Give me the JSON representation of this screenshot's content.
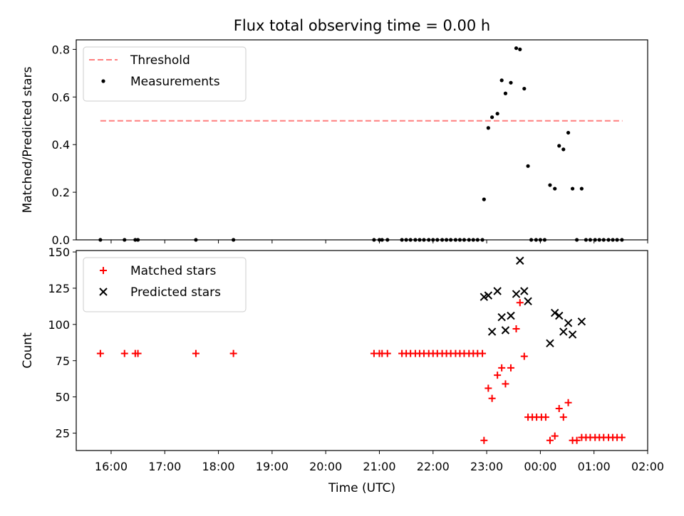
{
  "title": "Flux total observing time = 0.00 h",
  "chart_data": [
    {
      "type": "scatter",
      "panel": "top",
      "ylabel": "Matched/Predicted stars",
      "xlabel": "",
      "x_unit": "hours since 00:00 UTC of first night",
      "xlim": [
        15.35,
        26.0
      ],
      "ylim": [
        0.0,
        0.84
      ],
      "yticks": [
        0.0,
        0.2,
        0.4,
        0.6,
        0.8
      ],
      "ytick_labels": [
        "0.0",
        "0.2",
        "0.4",
        "0.6",
        "0.8"
      ],
      "legend_position": "upper-left",
      "colors": {
        "threshold": "#ff7f7f",
        "measurements": "#000000"
      },
      "threshold": {
        "name": "Threshold",
        "y": 0.5,
        "x_start": 15.8,
        "x_end": 25.53
      },
      "series": [
        {
          "name": "Measurements",
          "points": [
            [
              15.8,
              0
            ],
            [
              16.25,
              0
            ],
            [
              16.45,
              0
            ],
            [
              16.5,
              0
            ],
            [
              17.58,
              0
            ],
            [
              18.28,
              0
            ],
            [
              20.9,
              0
            ],
            [
              21.0,
              0
            ],
            [
              21.05,
              0
            ],
            [
              21.15,
              0
            ],
            [
              21.42,
              0
            ],
            [
              21.5,
              0
            ],
            [
              21.58,
              0
            ],
            [
              21.67,
              0
            ],
            [
              21.75,
              0
            ],
            [
              21.83,
              0
            ],
            [
              21.92,
              0
            ],
            [
              22.0,
              0
            ],
            [
              22.08,
              0
            ],
            [
              22.17,
              0
            ],
            [
              22.25,
              0
            ],
            [
              22.33,
              0
            ],
            [
              22.42,
              0
            ],
            [
              22.5,
              0
            ],
            [
              22.58,
              0
            ],
            [
              22.67,
              0
            ],
            [
              22.75,
              0
            ],
            [
              22.83,
              0
            ],
            [
              22.92,
              0
            ],
            [
              22.95,
              0.17
            ],
            [
              23.03,
              0.47
            ],
            [
              23.1,
              0.515
            ],
            [
              23.2,
              0.53
            ],
            [
              23.28,
              0.67
            ],
            [
              23.35,
              0.615
            ],
            [
              23.45,
              0.66
            ],
            [
              23.55,
              0.805
            ],
            [
              23.62,
              0.8
            ],
            [
              23.7,
              0.635
            ],
            [
              23.77,
              0.31
            ],
            [
              23.83,
              0
            ],
            [
              23.92,
              0
            ],
            [
              24.0,
              0
            ],
            [
              24.08,
              0
            ],
            [
              24.18,
              0.23
            ],
            [
              24.27,
              0.215
            ],
            [
              24.35,
              0.395
            ],
            [
              24.43,
              0.38
            ],
            [
              24.52,
              0.45
            ],
            [
              24.6,
              0.215
            ],
            [
              24.68,
              0
            ],
            [
              24.77,
              0.215
            ],
            [
              24.85,
              0
            ],
            [
              24.93,
              0
            ],
            [
              25.02,
              0
            ],
            [
              25.1,
              0
            ],
            [
              25.18,
              0
            ],
            [
              25.27,
              0
            ],
            [
              25.35,
              0
            ],
            [
              25.43,
              0
            ],
            [
              25.52,
              0
            ]
          ]
        }
      ]
    },
    {
      "type": "scatter",
      "panel": "bottom",
      "ylabel": "Count",
      "xlabel": "Time (UTC)",
      "x_unit": "hours since 00:00 UTC of first night",
      "xlim": [
        15.35,
        26.0
      ],
      "ylim": [
        13,
        151
      ],
      "yticks": [
        25,
        50,
        75,
        100,
        125,
        150
      ],
      "ytick_labels": [
        "25",
        "50",
        "75",
        "100",
        "125",
        "150"
      ],
      "xticks": [
        16,
        17,
        18,
        19,
        20,
        21,
        22,
        23,
        24,
        25,
        26
      ],
      "xtick_labels": [
        "16:00",
        "17:00",
        "18:00",
        "19:00",
        "20:00",
        "21:00",
        "22:00",
        "23:00",
        "00:00",
        "01:00",
        "02:00"
      ],
      "legend_position": "upper-left",
      "colors": {
        "matched": "#ff0000",
        "predicted": "#000000"
      },
      "series": [
        {
          "name": "Matched stars",
          "marker": "plus",
          "points": [
            [
              15.8,
              80
            ],
            [
              16.25,
              80
            ],
            [
              16.45,
              80
            ],
            [
              16.5,
              80
            ],
            [
              17.58,
              80
            ],
            [
              18.28,
              80
            ],
            [
              20.9,
              80
            ],
            [
              21.0,
              80
            ],
            [
              21.05,
              80
            ],
            [
              21.15,
              80
            ],
            [
              21.42,
              80
            ],
            [
              21.5,
              80
            ],
            [
              21.58,
              80
            ],
            [
              21.67,
              80
            ],
            [
              21.75,
              80
            ],
            [
              21.83,
              80
            ],
            [
              21.92,
              80
            ],
            [
              22.0,
              80
            ],
            [
              22.08,
              80
            ],
            [
              22.17,
              80
            ],
            [
              22.25,
              80
            ],
            [
              22.33,
              80
            ],
            [
              22.42,
              80
            ],
            [
              22.5,
              80
            ],
            [
              22.58,
              80
            ],
            [
              22.67,
              80
            ],
            [
              22.75,
              80
            ],
            [
              22.83,
              80
            ],
            [
              22.92,
              80
            ],
            [
              22.95,
              20
            ],
            [
              23.03,
              56
            ],
            [
              23.1,
              49
            ],
            [
              23.2,
              65
            ],
            [
              23.28,
              70
            ],
            [
              23.35,
              59
            ],
            [
              23.45,
              70
            ],
            [
              23.55,
              97
            ],
            [
              23.62,
              115
            ],
            [
              23.7,
              78
            ],
            [
              23.77,
              36
            ],
            [
              23.85,
              36
            ],
            [
              23.93,
              36
            ],
            [
              24.02,
              36
            ],
            [
              24.1,
              36
            ],
            [
              24.18,
              20
            ],
            [
              24.27,
              23
            ],
            [
              24.35,
              42
            ],
            [
              24.43,
              36
            ],
            [
              24.52,
              46
            ],
            [
              24.6,
              20
            ],
            [
              24.68,
              20
            ],
            [
              24.77,
              22
            ],
            [
              24.85,
              22
            ],
            [
              24.93,
              22
            ],
            [
              25.02,
              22
            ],
            [
              25.1,
              22
            ],
            [
              25.18,
              22
            ],
            [
              25.27,
              22
            ],
            [
              25.35,
              22
            ],
            [
              25.43,
              22
            ],
            [
              25.52,
              22
            ]
          ]
        },
        {
          "name": "Predicted stars",
          "marker": "x",
          "points": [
            [
              22.95,
              119
            ],
            [
              23.03,
              120
            ],
            [
              23.1,
              95
            ],
            [
              23.2,
              123
            ],
            [
              23.28,
              105
            ],
            [
              23.35,
              96
            ],
            [
              23.45,
              106
            ],
            [
              23.55,
              121
            ],
            [
              23.62,
              144
            ],
            [
              23.7,
              123
            ],
            [
              23.77,
              116
            ],
            [
              24.18,
              87
            ],
            [
              24.27,
              108
            ],
            [
              24.35,
              106
            ],
            [
              24.43,
              95
            ],
            [
              24.52,
              101
            ],
            [
              24.6,
              93
            ],
            [
              24.77,
              102
            ]
          ]
        }
      ]
    }
  ]
}
